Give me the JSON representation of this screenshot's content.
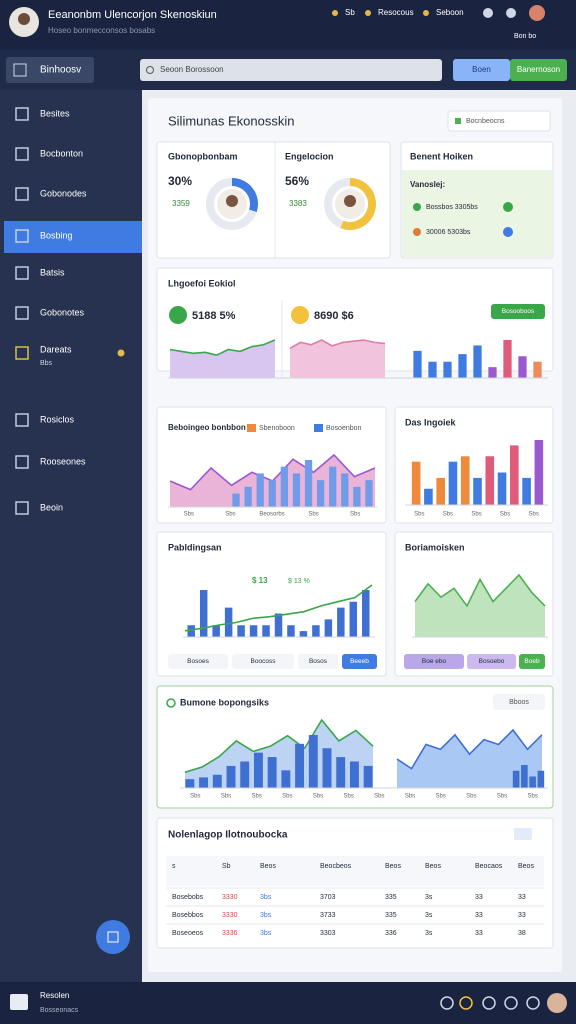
{
  "header": {
    "title": "Eeanonbm Ulencorjon Skenoskiun",
    "subtitle": "Hoseo bonmecconsos bosabs",
    "links": [
      "Sb",
      "Resocous",
      "Seboon"
    ],
    "badge": "Bon bo"
  },
  "toolbar": {
    "menu": "Binhoosv",
    "search": "Seoon Borossoon",
    "buttons": [
      "Boen",
      "Banernoson"
    ]
  },
  "sidebar": {
    "items": [
      {
        "label": "Besites"
      },
      {
        "label": "Bocbonton"
      },
      {
        "label": "Gobonodes"
      },
      {
        "label": "Bosbing",
        "active": true
      },
      {
        "label": "Batsis"
      },
      {
        "label": "Gobonotes"
      },
      {
        "label": "Dareats",
        "note": "Bbs"
      },
      {
        "label": "Rosiclos"
      },
      {
        "label": "Rooseones"
      },
      {
        "label": "Beoin"
      }
    ]
  },
  "page": {
    "title": "Silimunas Ekonosskin",
    "dropdown": "Bocnbeocns"
  },
  "donuts": [
    {
      "title": "Gbonopbonbam",
      "value": 30,
      "label": "30%",
      "sub": "3359",
      "color": "#3f7be0"
    },
    {
      "title": "Engelocion",
      "value": 56,
      "label": "56%",
      "sub": "3383",
      "color": "#f2c23c"
    }
  ],
  "benefit": {
    "title": "Benent Hoiken",
    "subtitle": "Vanoslej:",
    "items": [
      "Bossbos 3305bs",
      "30006 5303bs"
    ]
  },
  "overview": {
    "title": "Lhgoefoi Eokiol",
    "stats": [
      "5188 5%",
      "8690 $6"
    ],
    "button": "Bosooboos",
    "area1": [
      30,
      28,
      26,
      27,
      24,
      30,
      28,
      33,
      35,
      40
    ],
    "area2": [
      25,
      30,
      28,
      32,
      27,
      30,
      31,
      32,
      30,
      29
    ],
    "bars": [
      25,
      15,
      15,
      22,
      30,
      10,
      35,
      20,
      15
    ],
    "bar_colors": [
      "#3f7be0",
      "#3f7be0",
      "#3f7be0",
      "#3f7be0",
      "#3f7be0",
      "#9b59d0",
      "#e05a7a",
      "#9b59d0",
      "#ef8a5a"
    ]
  },
  "trend": {
    "title": "Beboingeo bonbbon",
    "legend": [
      {
        "name": "Sbenoboon",
        "color": "#ef8a3c"
      },
      {
        "name": "Bosoenbon",
        "color": "#3f7be0"
      }
    ],
    "area": [
      30,
      20,
      45,
      25,
      40,
      30,
      55,
      40,
      60,
      35,
      45
    ],
    "bars": [
      10,
      15,
      25,
      20,
      30,
      25,
      35,
      20,
      30,
      25,
      15,
      20
    ],
    "xlabels": [
      "Sbs",
      "Sbs",
      "Beosorbs",
      "Sbs",
      "Sbs"
    ]
  },
  "insight": {
    "title": "Das Ingoiek",
    "values": [
      40,
      15,
      25,
      40,
      45,
      25,
      45,
      30,
      55,
      25,
      60
    ],
    "colors": [
      "#ef8a3c",
      "#3f7be0",
      "#ef8a3c",
      "#3f7be0",
      "#ef8a3c",
      "#3f7be0",
      "#e05a7a",
      "#3f7be0",
      "#e05a7a",
      "#3f7be0",
      "#9b59d0"
    ],
    "xlabels": [
      "Sbs",
      "Sbs",
      "Sbs",
      "Sbs",
      "Sbs"
    ]
  },
  "budget": {
    "title": "Pabldingsan",
    "annotations": [
      "$ 13",
      "$ 13 %"
    ],
    "bars": [
      10,
      40,
      10,
      25,
      10,
      10,
      10,
      20,
      10,
      5,
      10,
      15,
      25,
      30,
      40
    ],
    "line": [
      5,
      8,
      12,
      15,
      20,
      22,
      25,
      28,
      35,
      40,
      45,
      60
    ],
    "buttons": [
      "Bosoes",
      "Boocoss",
      "Bosos",
      "Beeeb"
    ]
  },
  "balance": {
    "title": "Boriamoisken",
    "area": [
      40,
      60,
      45,
      55,
      35,
      65,
      40,
      55,
      70,
      50,
      35
    ],
    "buttons": [
      "Boe ebo",
      "Bosoebo",
      "Boeb"
    ]
  },
  "combo": {
    "title": "Bumone bopongsiks",
    "button": "Bboos",
    "bars": [
      10,
      12,
      15,
      25,
      30,
      40,
      35,
      20,
      50,
      60,
      45,
      35,
      30,
      25
    ],
    "line": [
      15,
      20,
      30,
      45,
      35,
      40,
      50,
      38,
      65,
      45,
      55,
      40
    ],
    "area2": [
      30,
      20,
      45,
      40,
      55,
      35,
      50,
      45,
      60,
      40,
      55
    ],
    "bars2": [
      15,
      20,
      10,
      15
    ],
    "xlabels": [
      "Sbs",
      "Sbs",
      "Sbs",
      "Sbs",
      "Sbs",
      "Sbs",
      "Sbs",
      "Sbs",
      "Sbs",
      "Sbs",
      "Sbs",
      "Sbs"
    ]
  },
  "table": {
    "title": "Nolenlagop Ilotnoubocka",
    "columns": [
      "s",
      "Sb",
      "Beos",
      "Beocbeos",
      "Beos",
      "Beos",
      "Beocaos",
      "Beos"
    ],
    "rows": [
      [
        "Bosebobs",
        "3330",
        "3bs",
        "3703",
        "335",
        "3s",
        "33",
        "33"
      ],
      [
        "Bosebbos",
        "3330",
        "3bs",
        "3733",
        "335",
        "3s",
        "33",
        "33"
      ],
      [
        "Boseoeos",
        "3336",
        "3bs",
        "3303",
        "336",
        "3s",
        "33",
        "38"
      ]
    ]
  },
  "footer": {
    "title": "Resolen",
    "subtitle": "Bosseonacs"
  }
}
